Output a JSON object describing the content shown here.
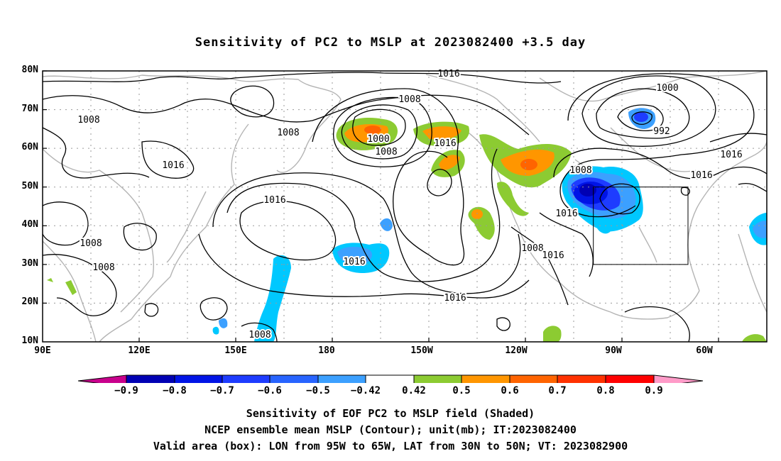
{
  "title": "Sensitivity of PC2 to MSLP at 2023082400 +3.5 day",
  "lat_labels": [
    "80N",
    "70N",
    "60N",
    "50N",
    "40N",
    "30N",
    "20N",
    "10N"
  ],
  "lon_labels": [
    "90E",
    "120E",
    "150E",
    "180",
    "150W",
    "120W",
    "90W",
    "60W"
  ],
  "colorbar": {
    "tick_labels": [
      "-0.9",
      "-0.8",
      "-0.7",
      "-0.6",
      "-0.5",
      "-0.42",
      "0.42",
      "0.5",
      "0.6",
      "0.7",
      "0.8",
      "0.9"
    ],
    "colors": [
      "#c8008c",
      "#0000b4",
      "#0014e6",
      "#1e3cff",
      "#2864ff",
      "#3ca0ff",
      "#00c8ff",
      "#ffffff",
      "#8ccb32",
      "#ff9600",
      "#ff6400",
      "#ff3200",
      "#ff0000",
      "#ff9bc8"
    ]
  },
  "contour_labels": [
    "1016",
    "1008",
    "1000",
    "1008",
    "1016",
    "1000",
    "992",
    "1016",
    "1008",
    "1016",
    "1016",
    "1008",
    "1016",
    "1008",
    "1016",
    "1008",
    "1008",
    "1008",
    "1016",
    "1016",
    "1008",
    "1016"
  ],
  "valid_box": {
    "lon_west": "95W",
    "lon_east": "65W",
    "lat_south": "30N",
    "lat_north": "50N"
  },
  "captions": {
    "line1": "Sensitivity of EOF PC2 to MSLP field (Shaded)",
    "line2": "NCEP ensemble mean MSLP (Contour); unit(mb); IT:2023082400",
    "line3": "Valid area (box): LON from 95W to 65W, LAT from 30N to 50N; VT: 2023082900"
  }
}
